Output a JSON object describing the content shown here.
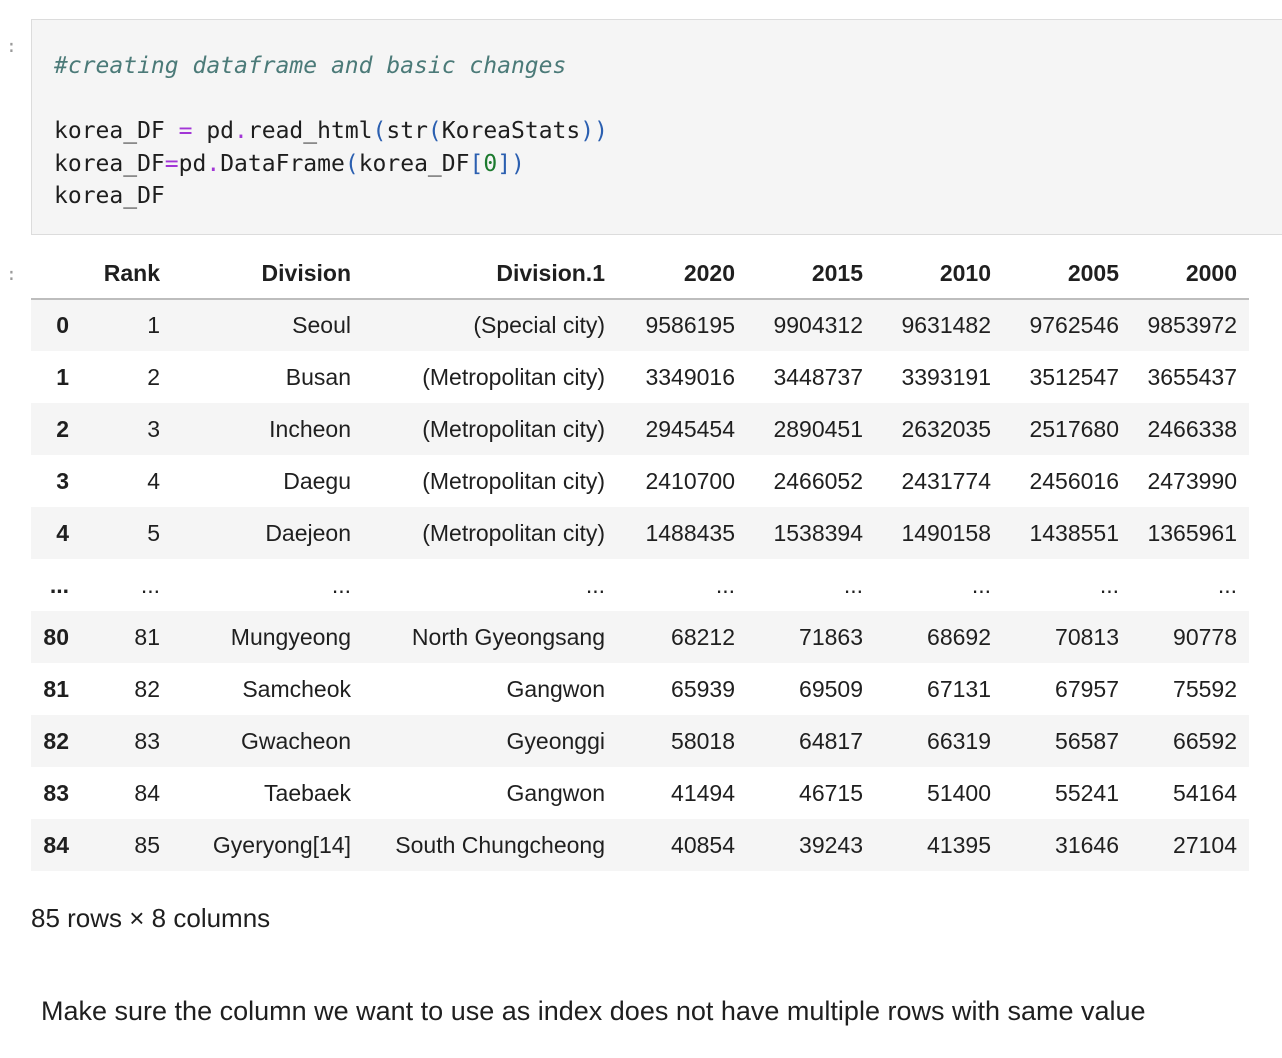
{
  "code_cell": {
    "marker": ":",
    "lines": [
      [
        {
          "t": "#creating dataframe and basic changes",
          "c": "comment"
        }
      ],
      [],
      [
        {
          "t": "korea_DF ",
          "c": "plain"
        },
        {
          "t": "=",
          "c": "op"
        },
        {
          "t": " pd",
          "c": "plain"
        },
        {
          "t": ".",
          "c": "op"
        },
        {
          "t": "read_html",
          "c": "plain"
        },
        {
          "t": "(",
          "c": "paren"
        },
        {
          "t": "str",
          "c": "plain"
        },
        {
          "t": "(",
          "c": "paren"
        },
        {
          "t": "KoreaStats",
          "c": "plain"
        },
        {
          "t": "))",
          "c": "paren"
        }
      ],
      [
        {
          "t": "korea_DF",
          "c": "plain"
        },
        {
          "t": "=",
          "c": "op"
        },
        {
          "t": "pd",
          "c": "plain"
        },
        {
          "t": ".",
          "c": "op"
        },
        {
          "t": "DataFrame",
          "c": "plain"
        },
        {
          "t": "(",
          "c": "paren"
        },
        {
          "t": "korea_DF",
          "c": "plain"
        },
        {
          "t": "[",
          "c": "paren"
        },
        {
          "t": "0",
          "c": "num"
        },
        {
          "t": "])",
          "c": "paren"
        }
      ],
      [
        {
          "t": "korea_DF",
          "c": "plain"
        }
      ]
    ]
  },
  "output_cell": {
    "marker": ":",
    "columns": [
      "",
      "Rank",
      "Division",
      "Division.1",
      "2020",
      "2015",
      "2010",
      "2005",
      "2000"
    ],
    "rows": [
      [
        "0",
        "1",
        "Seoul",
        "(Special city)",
        "9586195",
        "9904312",
        "9631482",
        "9762546",
        "9853972"
      ],
      [
        "1",
        "2",
        "Busan",
        "(Metropolitan city)",
        "3349016",
        "3448737",
        "3393191",
        "3512547",
        "3655437"
      ],
      [
        "2",
        "3",
        "Incheon",
        "(Metropolitan city)",
        "2945454",
        "2890451",
        "2632035",
        "2517680",
        "2466338"
      ],
      [
        "3",
        "4",
        "Daegu",
        "(Metropolitan city)",
        "2410700",
        "2466052",
        "2431774",
        "2456016",
        "2473990"
      ],
      [
        "4",
        "5",
        "Daejeon",
        "(Metropolitan city)",
        "1488435",
        "1538394",
        "1490158",
        "1438551",
        "1365961"
      ],
      [
        "...",
        "...",
        "...",
        "...",
        "...",
        "...",
        "...",
        "...",
        "..."
      ],
      [
        "80",
        "81",
        "Mungyeong",
        "North Gyeongsang",
        "68212",
        "71863",
        "68692",
        "70813",
        "90778"
      ],
      [
        "81",
        "82",
        "Samcheok",
        "Gangwon",
        "65939",
        "69509",
        "67131",
        "67957",
        "75592"
      ],
      [
        "82",
        "83",
        "Gwacheon",
        "Gyeonggi",
        "58018",
        "64817",
        "66319",
        "56587",
        "66592"
      ],
      [
        "83",
        "84",
        "Taebaek",
        "Gangwon",
        "41494",
        "46715",
        "51400",
        "55241",
        "54164"
      ],
      [
        "84",
        "85",
        "Gyeryong[14]",
        "South Chungcheong",
        "40854",
        "39243",
        "41395",
        "31646",
        "27104"
      ]
    ],
    "shape_note": "85 rows × 8 columns"
  },
  "markdown": {
    "text": "Make sure the column we want to use as index does not have multiple rows with same value"
  }
}
